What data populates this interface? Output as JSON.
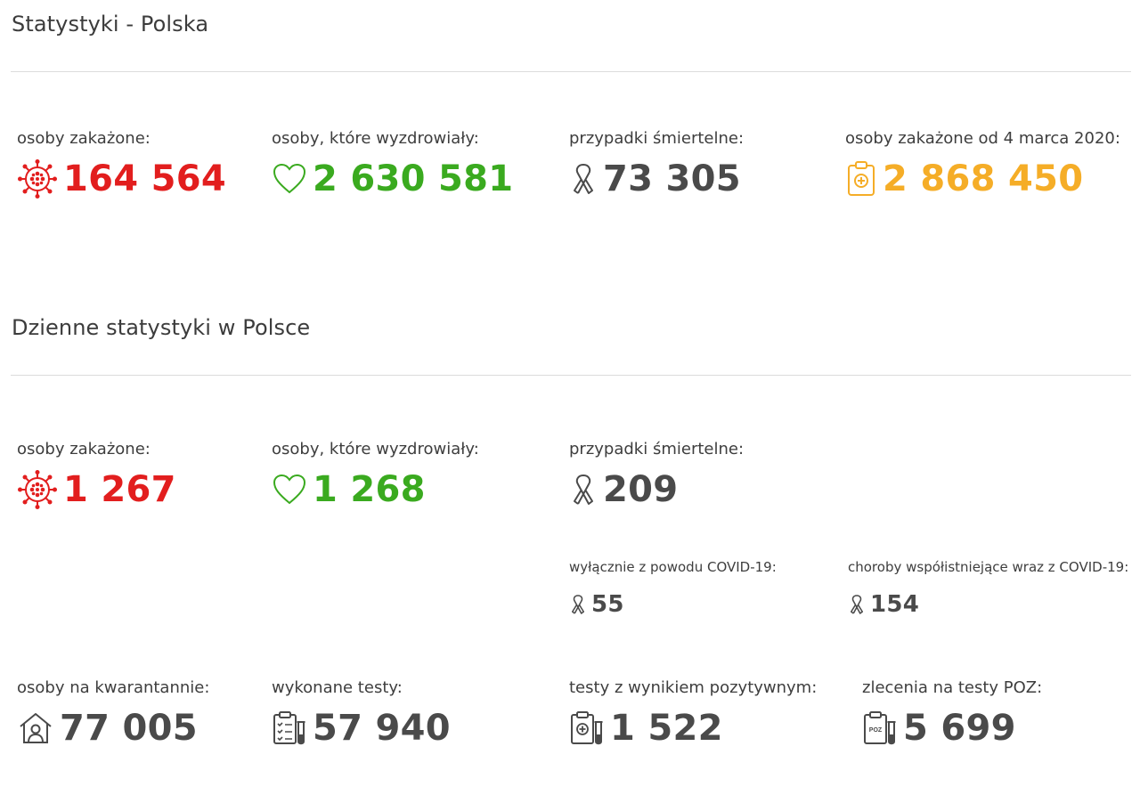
{
  "colors": {
    "infected": "#e21e1e",
    "recovered": "#3aaa1f",
    "deaths": "#4a4a4a",
    "total": "#f5ad27",
    "neutral": "#4a4a4a"
  },
  "overall": {
    "title": "Statystyki - Polska",
    "infected": {
      "label": "osoby zakażone:",
      "value": "164 564",
      "icon": "virus-icon"
    },
    "recovered": {
      "label": "osoby, które wyzdrowiały:",
      "value": "2 630 581",
      "icon": "heart-icon"
    },
    "deaths": {
      "label": "przypadki śmiertelne:",
      "value": "73 305",
      "icon": "ribbon-icon"
    },
    "total": {
      "label": "osoby zakażone od 4 marca 2020:",
      "value": "2 868 450",
      "icon": "clipboard-medical-icon"
    }
  },
  "daily": {
    "title": "Dzienne statystyki w Polsce",
    "infected": {
      "label": "osoby zakażone:",
      "value": "1 267",
      "icon": "virus-icon"
    },
    "recovered": {
      "label": "osoby, które wyzdrowiały:",
      "value": "1 268",
      "icon": "heart-icon"
    },
    "deaths": {
      "label": "przypadki śmiertelne:",
      "value": "209",
      "icon": "ribbon-icon"
    },
    "deaths_covid_only": {
      "label": "wyłącznie z powodu COVID-19:",
      "value": "55",
      "icon": "ribbon-icon"
    },
    "deaths_comorbid": {
      "label": "choroby współistniejące wraz z COVID-19:",
      "value": "154",
      "icon": "ribbon-icon"
    },
    "quarantine": {
      "label": "osoby na kwarantannie:",
      "value": "77 005",
      "icon": "house-person-icon"
    },
    "tests": {
      "label": "wykonane testy:",
      "value": "57 940",
      "icon": "test-list-icon"
    },
    "positive_tests": {
      "label": "testy z wynikiem pozytywnym:",
      "value": "1 522",
      "icon": "test-positive-icon"
    },
    "poz_orders": {
      "label": "zlecenia na testy POZ:",
      "value": "5 699",
      "icon": "test-poz-icon",
      "icon_text": "POZ"
    }
  }
}
